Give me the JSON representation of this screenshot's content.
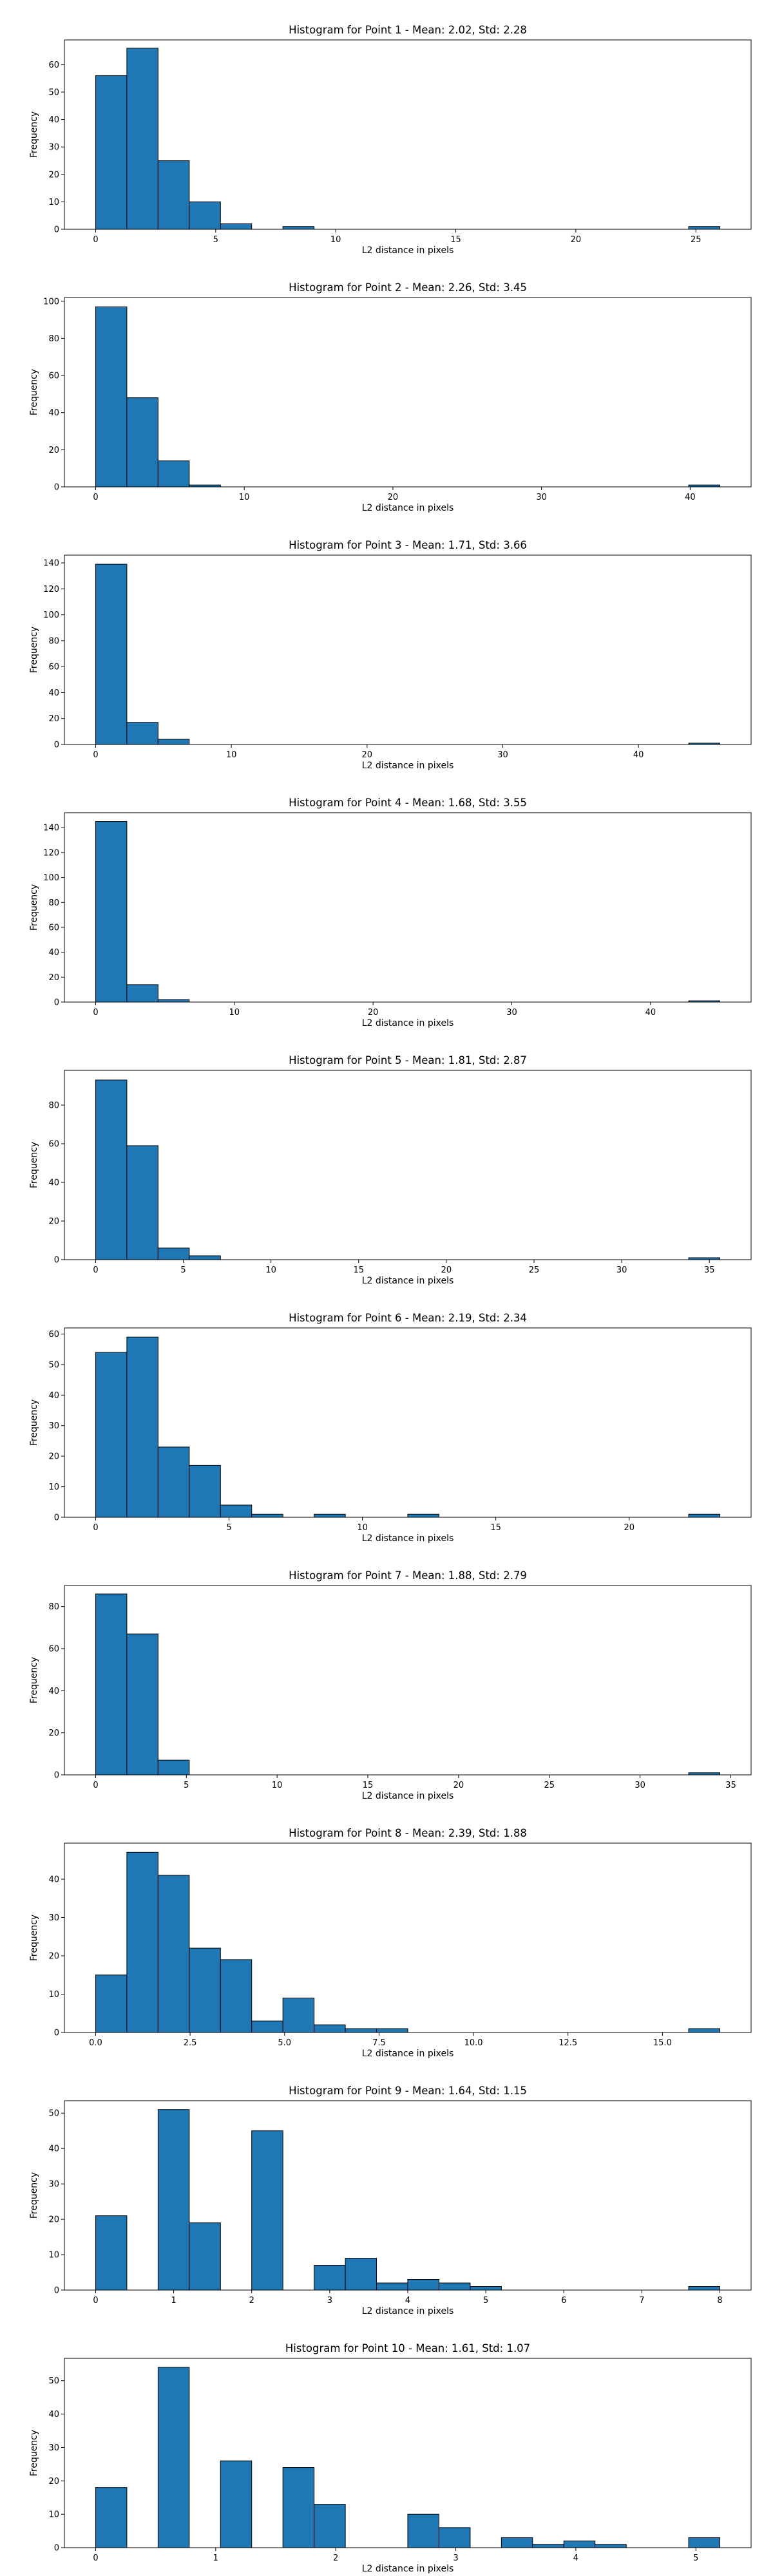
{
  "bar_color": "#1f77b4",
  "edge_color": "#000000",
  "chart_data": [
    {
      "type": "bar",
      "title": "Histogram for Point 1 - Mean: 2.02, Std: 2.28",
      "xlabel": "L2 distance in pixels",
      "ylabel": "Frequency",
      "xlim": [
        -1.3,
        27.3
      ],
      "ylim": [
        0,
        69
      ],
      "xticks": [
        0,
        5,
        10,
        15,
        20,
        25
      ],
      "yticks": [
        0,
        10,
        20,
        30,
        40,
        50,
        60
      ],
      "x_tick_labels": [
        "0",
        "5",
        "10",
        "15",
        "20",
        "25"
      ],
      "y_tick_labels": [
        "0",
        "10",
        "20",
        "30",
        "40",
        "50",
        "60"
      ],
      "bin_start": 0,
      "bin_width": 1.3,
      "values": [
        56,
        66,
        25,
        10,
        2,
        0,
        1,
        0,
        0,
        0,
        0,
        0,
        0,
        0,
        0,
        0,
        0,
        0,
        0,
        1
      ]
    },
    {
      "type": "bar",
      "title": "Histogram for Point 2 - Mean: 2.26, Std: 3.45",
      "xlabel": "L2 distance in pixels",
      "ylabel": "Frequency",
      "xlim": [
        -2.1,
        44.1
      ],
      "ylim": [
        0,
        102
      ],
      "xticks": [
        0,
        10,
        20,
        30,
        40
      ],
      "yticks": [
        0,
        20,
        40,
        60,
        80,
        100
      ],
      "x_tick_labels": [
        "0",
        "10",
        "20",
        "30",
        "40"
      ],
      "y_tick_labels": [
        "0",
        "20",
        "40",
        "60",
        "80",
        "100"
      ],
      "bin_start": 0,
      "bin_width": 2.1,
      "values": [
        97,
        48,
        14,
        1,
        0,
        0,
        0,
        0,
        0,
        0,
        0,
        0,
        0,
        0,
        0,
        0,
        0,
        0,
        0,
        1
      ]
    },
    {
      "type": "bar",
      "title": "Histogram for Point 3 - Mean: 1.71, Std: 3.66",
      "xlabel": "L2 distance in pixels",
      "ylabel": "Frequency",
      "xlim": [
        -2.3,
        48.3
      ],
      "ylim": [
        0,
        146
      ],
      "xticks": [
        0,
        10,
        20,
        30,
        40
      ],
      "yticks": [
        0,
        20,
        40,
        60,
        80,
        100,
        120,
        140
      ],
      "x_tick_labels": [
        "0",
        "10",
        "20",
        "30",
        "40"
      ],
      "y_tick_labels": [
        "0",
        "20",
        "40",
        "60",
        "80",
        "100",
        "120",
        "140"
      ],
      "bin_start": 0,
      "bin_width": 2.3,
      "values": [
        139,
        17,
        4,
        0,
        0,
        0,
        0,
        0,
        0,
        0,
        0,
        0,
        0,
        0,
        0,
        0,
        0,
        0,
        0,
        1
      ]
    },
    {
      "type": "bar",
      "title": "Histogram for Point 4 - Mean: 1.68, Std: 3.55",
      "xlabel": "L2 distance in pixels",
      "ylabel": "Frequency",
      "xlim": [
        -2.25,
        47.25
      ],
      "ylim": [
        0,
        152
      ],
      "xticks": [
        0,
        10,
        20,
        30,
        40
      ],
      "yticks": [
        0,
        20,
        40,
        60,
        80,
        100,
        120,
        140
      ],
      "x_tick_labels": [
        "0",
        "10",
        "20",
        "30",
        "40"
      ],
      "y_tick_labels": [
        "0",
        "20",
        "40",
        "60",
        "80",
        "100",
        "120",
        "140"
      ],
      "bin_start": 0,
      "bin_width": 2.25,
      "values": [
        145,
        14,
        2,
        0,
        0,
        0,
        0,
        0,
        0,
        0,
        0,
        0,
        0,
        0,
        0,
        0,
        0,
        0,
        0,
        1
      ]
    },
    {
      "type": "bar",
      "title": "Histogram for Point 5 - Mean: 1.81, Std: 2.87",
      "xlabel": "L2 distance in pixels",
      "ylabel": "Frequency",
      "xlim": [
        -1.78,
        37.38
      ],
      "ylim": [
        0,
        98
      ],
      "xticks": [
        0,
        5,
        10,
        15,
        20,
        25,
        30,
        35
      ],
      "yticks": [
        0,
        20,
        40,
        60,
        80
      ],
      "x_tick_labels": [
        "0",
        "5",
        "10",
        "15",
        "20",
        "25",
        "30",
        "35"
      ],
      "y_tick_labels": [
        "0",
        "20",
        "40",
        "60",
        "80"
      ],
      "bin_start": 0,
      "bin_width": 1.78,
      "values": [
        93,
        59,
        6,
        2,
        0,
        0,
        0,
        0,
        0,
        0,
        0,
        0,
        0,
        0,
        0,
        0,
        0,
        0,
        0,
        1
      ]
    },
    {
      "type": "bar",
      "title": "Histogram for Point 6 - Mean: 2.19, Std: 2.34",
      "xlabel": "L2 distance in pixels",
      "ylabel": "Frequency",
      "xlim": [
        -1.17,
        24.57
      ],
      "ylim": [
        0,
        62
      ],
      "xticks": [
        0,
        5,
        10,
        15,
        20
      ],
      "yticks": [
        0,
        10,
        20,
        30,
        40,
        50,
        60
      ],
      "x_tick_labels": [
        "0",
        "5",
        "10",
        "15",
        "20"
      ],
      "y_tick_labels": [
        "0",
        "10",
        "20",
        "30",
        "40",
        "50",
        "60"
      ],
      "bin_start": 0,
      "bin_width": 1.17,
      "values": [
        54,
        59,
        23,
        17,
        4,
        1,
        0,
        1,
        0,
        0,
        1,
        0,
        0,
        0,
        0,
        0,
        0,
        0,
        0,
        1
      ]
    },
    {
      "type": "bar",
      "title": "Histogram for Point 7 - Mean: 1.88, Std: 2.79",
      "xlabel": "L2 distance in pixels",
      "ylabel": "Frequency",
      "xlim": [
        -1.72,
        36.12
      ],
      "ylim": [
        0,
        90
      ],
      "xticks": [
        0,
        5,
        10,
        15,
        20,
        25,
        30,
        35
      ],
      "yticks": [
        0,
        20,
        40,
        60,
        80
      ],
      "x_tick_labels": [
        "0",
        "5",
        "10",
        "15",
        "20",
        "25",
        "30",
        "35"
      ],
      "y_tick_labels": [
        "0",
        "20",
        "40",
        "60",
        "80"
      ],
      "bin_start": 0,
      "bin_width": 1.72,
      "values": [
        86,
        67,
        7,
        0,
        0,
        0,
        0,
        0,
        0,
        0,
        0,
        0,
        0,
        0,
        0,
        0,
        0,
        0,
        0,
        1
      ]
    },
    {
      "type": "bar",
      "title": "Histogram for Point 8 - Mean: 2.39, Std: 1.88",
      "xlabel": "L2 distance in pixels",
      "ylabel": "Frequency",
      "xlim": [
        -0.826,
        17.346
      ],
      "ylim": [
        0,
        49.4
      ],
      "xticks": [
        0,
        2.5,
        5,
        7.5,
        10,
        12.5,
        15
      ],
      "yticks": [
        0,
        10,
        20,
        30,
        40
      ],
      "x_tick_labels": [
        "0.0",
        "2.5",
        "5.0",
        "7.5",
        "10.0",
        "12.5",
        "15.0"
      ],
      "y_tick_labels": [
        "0",
        "10",
        "20",
        "30",
        "40"
      ],
      "bin_start": 0,
      "bin_width": 0.826,
      "values": [
        15,
        47,
        41,
        22,
        19,
        3,
        9,
        2,
        1,
        1,
        0,
        0,
        0,
        0,
        0,
        0,
        0,
        0,
        0,
        1
      ]
    },
    {
      "type": "bar",
      "title": "Histogram for Point 9 - Mean: 1.64, Std: 1.15",
      "xlabel": "L2 distance in pixels",
      "ylabel": "Frequency",
      "xlim": [
        -0.4,
        8.4
      ],
      "ylim": [
        0,
        53.5
      ],
      "xticks": [
        0,
        1,
        2,
        3,
        4,
        5,
        6,
        7,
        8
      ],
      "yticks": [
        0,
        10,
        20,
        30,
        40,
        50
      ],
      "x_tick_labels": [
        "0",
        "1",
        "2",
        "3",
        "4",
        "5",
        "6",
        "7",
        "8"
      ],
      "y_tick_labels": [
        "0",
        "10",
        "20",
        "30",
        "40",
        "50"
      ],
      "bin_start": 0,
      "bin_width": 0.4,
      "values": [
        21,
        0,
        51,
        19,
        0,
        45,
        0,
        7,
        9,
        2,
        3,
        2,
        1,
        0,
        0,
        0,
        0,
        0,
        0,
        1
      ]
    },
    {
      "type": "bar",
      "title": "Histogram for Point 10 - Mean: 1.61, Std: 1.07",
      "xlabel": "L2 distance in pixels",
      "ylabel": "Frequency",
      "xlim": [
        -0.26,
        5.46
      ],
      "ylim": [
        0,
        56.7
      ],
      "xticks": [
        0,
        1,
        2,
        3,
        4,
        5
      ],
      "yticks": [
        0,
        10,
        20,
        30,
        40,
        50
      ],
      "x_tick_labels": [
        "0",
        "1",
        "2",
        "3",
        "4",
        "5"
      ],
      "y_tick_labels": [
        "0",
        "10",
        "20",
        "30",
        "40",
        "50"
      ],
      "bin_start": 0,
      "bin_width": 0.26,
      "values": [
        18,
        0,
        54,
        0,
        26,
        0,
        24,
        13,
        0,
        0,
        10,
        6,
        0,
        3,
        1,
        2,
        1,
        0,
        0,
        3
      ]
    }
  ]
}
